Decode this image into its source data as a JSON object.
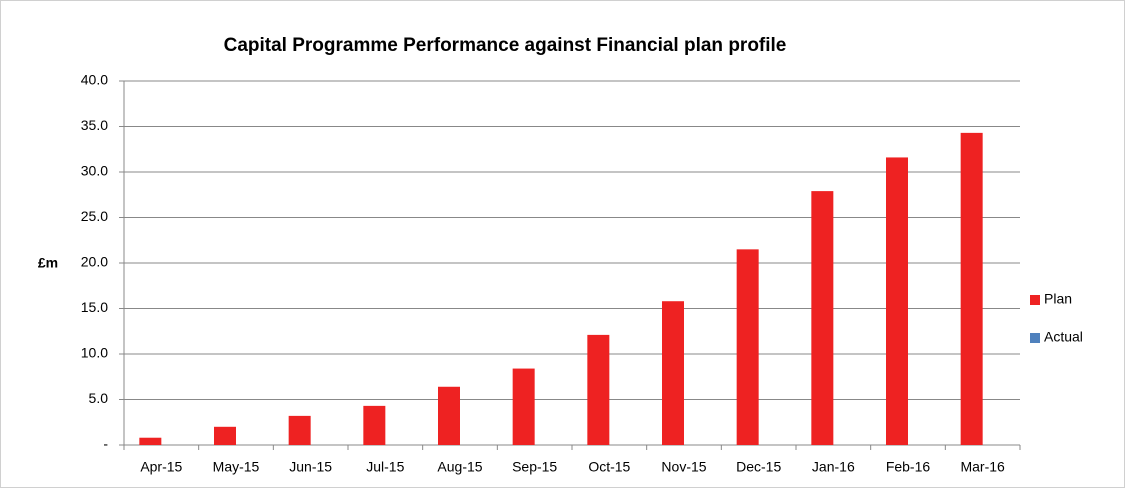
{
  "chart_data": {
    "type": "bar",
    "title": "Capital Programme  Performance against Financial plan profile",
    "y_label": "£m",
    "categories": [
      "Apr-15",
      "May-15",
      "Jun-15",
      "Jul-15",
      "Aug-15",
      "Sep-15",
      "Oct-15",
      "Nov-15",
      "Dec-15",
      "Jan-16",
      "Feb-16",
      "Mar-16"
    ],
    "series": [
      {
        "name": "Plan",
        "color": "#ee2222",
        "values": [
          0.8,
          2.0,
          3.2,
          4.3,
          6.4,
          8.4,
          12.1,
          15.8,
          21.5,
          27.9,
          31.6,
          34.3
        ]
      },
      {
        "name": "Actual",
        "color": "#4f81bd",
        "values": [
          null,
          null,
          null,
          null,
          null,
          null,
          null,
          null,
          null,
          null,
          null,
          null
        ]
      }
    ],
    "ylim": [
      0,
      40
    ],
    "yticks": [
      {
        "value": 0,
        "label": "-"
      },
      {
        "value": 5,
        "label": "5.0"
      },
      {
        "value": 10,
        "label": "10.0"
      },
      {
        "value": 15,
        "label": "15.0"
      },
      {
        "value": 20,
        "label": "20.0"
      },
      {
        "value": 25,
        "label": "25.0"
      },
      {
        "value": 30,
        "label": "30.0"
      },
      {
        "value": 35,
        "label": "35.0"
      },
      {
        "value": 40,
        "label": "40.0"
      }
    ],
    "grid": true,
    "legend": "right"
  }
}
